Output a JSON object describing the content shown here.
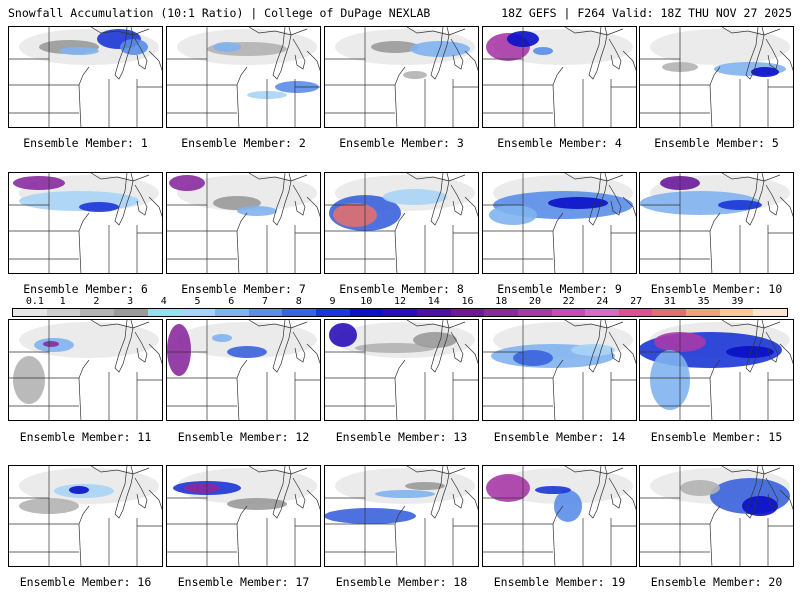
{
  "header": {
    "title_left": "Snowfall Accumulation (10:1 Ratio) | College of DuPage NEXLAB",
    "title_right": "18Z GEFS | F264 Valid: 18Z THU NOV 27 2025"
  },
  "legend": {
    "labels": [
      "0.1",
      "1",
      "2",
      "3",
      "4",
      "5",
      "6",
      "7",
      "8",
      "9",
      "10",
      "12",
      "14",
      "16",
      "18",
      "20",
      "22",
      "24",
      "27",
      "31",
      "35",
      "39"
    ],
    "colors": [
      "#e6e6e6",
      "#cdcdcd",
      "#b3b3b3",
      "#9a9a9a",
      "#8fe3ef",
      "#a9d4f5",
      "#7fb3f0",
      "#5a8de8",
      "#3a63dd",
      "#1b36d6",
      "#0a10c8",
      "#2a0fb8",
      "#4a10a8",
      "#6a1a9a",
      "#8a2a9e",
      "#a83aa8",
      "#c84ab2",
      "#d86bc0",
      "#e05090",
      "#e07070",
      "#f0a080",
      "#f8c8a0",
      "#fde6d0"
    ]
  },
  "panels": [
    {
      "label": "Ensemble Member: 1"
    },
    {
      "label": "Ensemble Member: 2"
    },
    {
      "label": "Ensemble Member: 3"
    },
    {
      "label": "Ensemble Member: 4"
    },
    {
      "label": "Ensemble Member: 5"
    },
    {
      "label": "Ensemble Member: 6"
    },
    {
      "label": "Ensemble Member: 7"
    },
    {
      "label": "Ensemble Member: 8"
    },
    {
      "label": "Ensemble Member: 9"
    },
    {
      "label": "Ensemble Member: 10"
    },
    {
      "label": "Ensemble Member: 11"
    },
    {
      "label": "Ensemble Member: 12"
    },
    {
      "label": "Ensemble Member: 13"
    },
    {
      "label": "Ensemble Member: 14"
    },
    {
      "label": "Ensemble Member: 15"
    },
    {
      "label": "Ensemble Member: 16"
    },
    {
      "label": "Ensemble Member: 17"
    },
    {
      "label": "Ensemble Member: 18"
    },
    {
      "label": "Ensemble Member: 19"
    },
    {
      "label": "Ensemble Member: 20"
    }
  ]
}
